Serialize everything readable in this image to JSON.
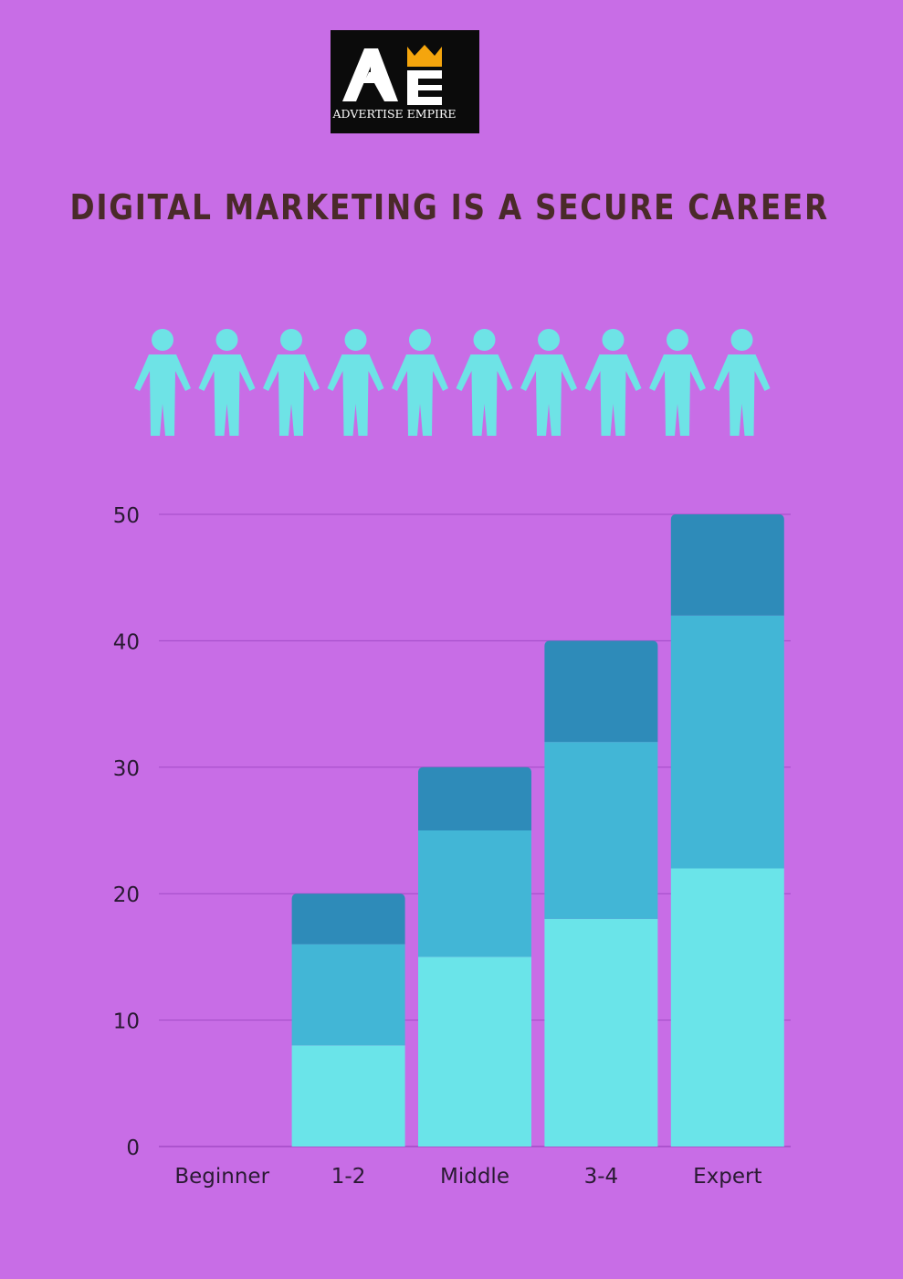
{
  "logo": {
    "monogram": "AE",
    "name": "ADVERTISE EMPIRE",
    "icon": "crown-icon",
    "colors": {
      "background": "#0b0b0b",
      "letters": "#ffffff",
      "crown": "#f5a50d"
    }
  },
  "headline": "DIGITAL MARKETING IS A SECURE CAREER",
  "people": {
    "icon": "person-icon",
    "count": 10,
    "color": "#6ee3e6"
  },
  "chart_data": {
    "type": "bar",
    "stacked": true,
    "categories": [
      "Beginner",
      "1-2",
      "Middle",
      "3-4",
      "Expert"
    ],
    "series": [
      {
        "values": [
          0,
          8,
          15,
          18,
          22
        ],
        "color": "#6ae4e9"
      },
      {
        "values": [
          0,
          8,
          10,
          14,
          20
        ],
        "color": "#42b6d6"
      },
      {
        "values": [
          0,
          4,
          5,
          8,
          8
        ],
        "color": "#2e8bb9"
      }
    ],
    "y_ticks": [
      0,
      10,
      20,
      30,
      40,
      50
    ],
    "ylim": [
      0,
      50
    ],
    "grid": true,
    "legend": "none",
    "title": "",
    "xlabel": "",
    "ylabel": "",
    "colors": {
      "background": "#c86de6",
      "gridline": "#a24bc6",
      "text": "#2a1a33"
    }
  }
}
